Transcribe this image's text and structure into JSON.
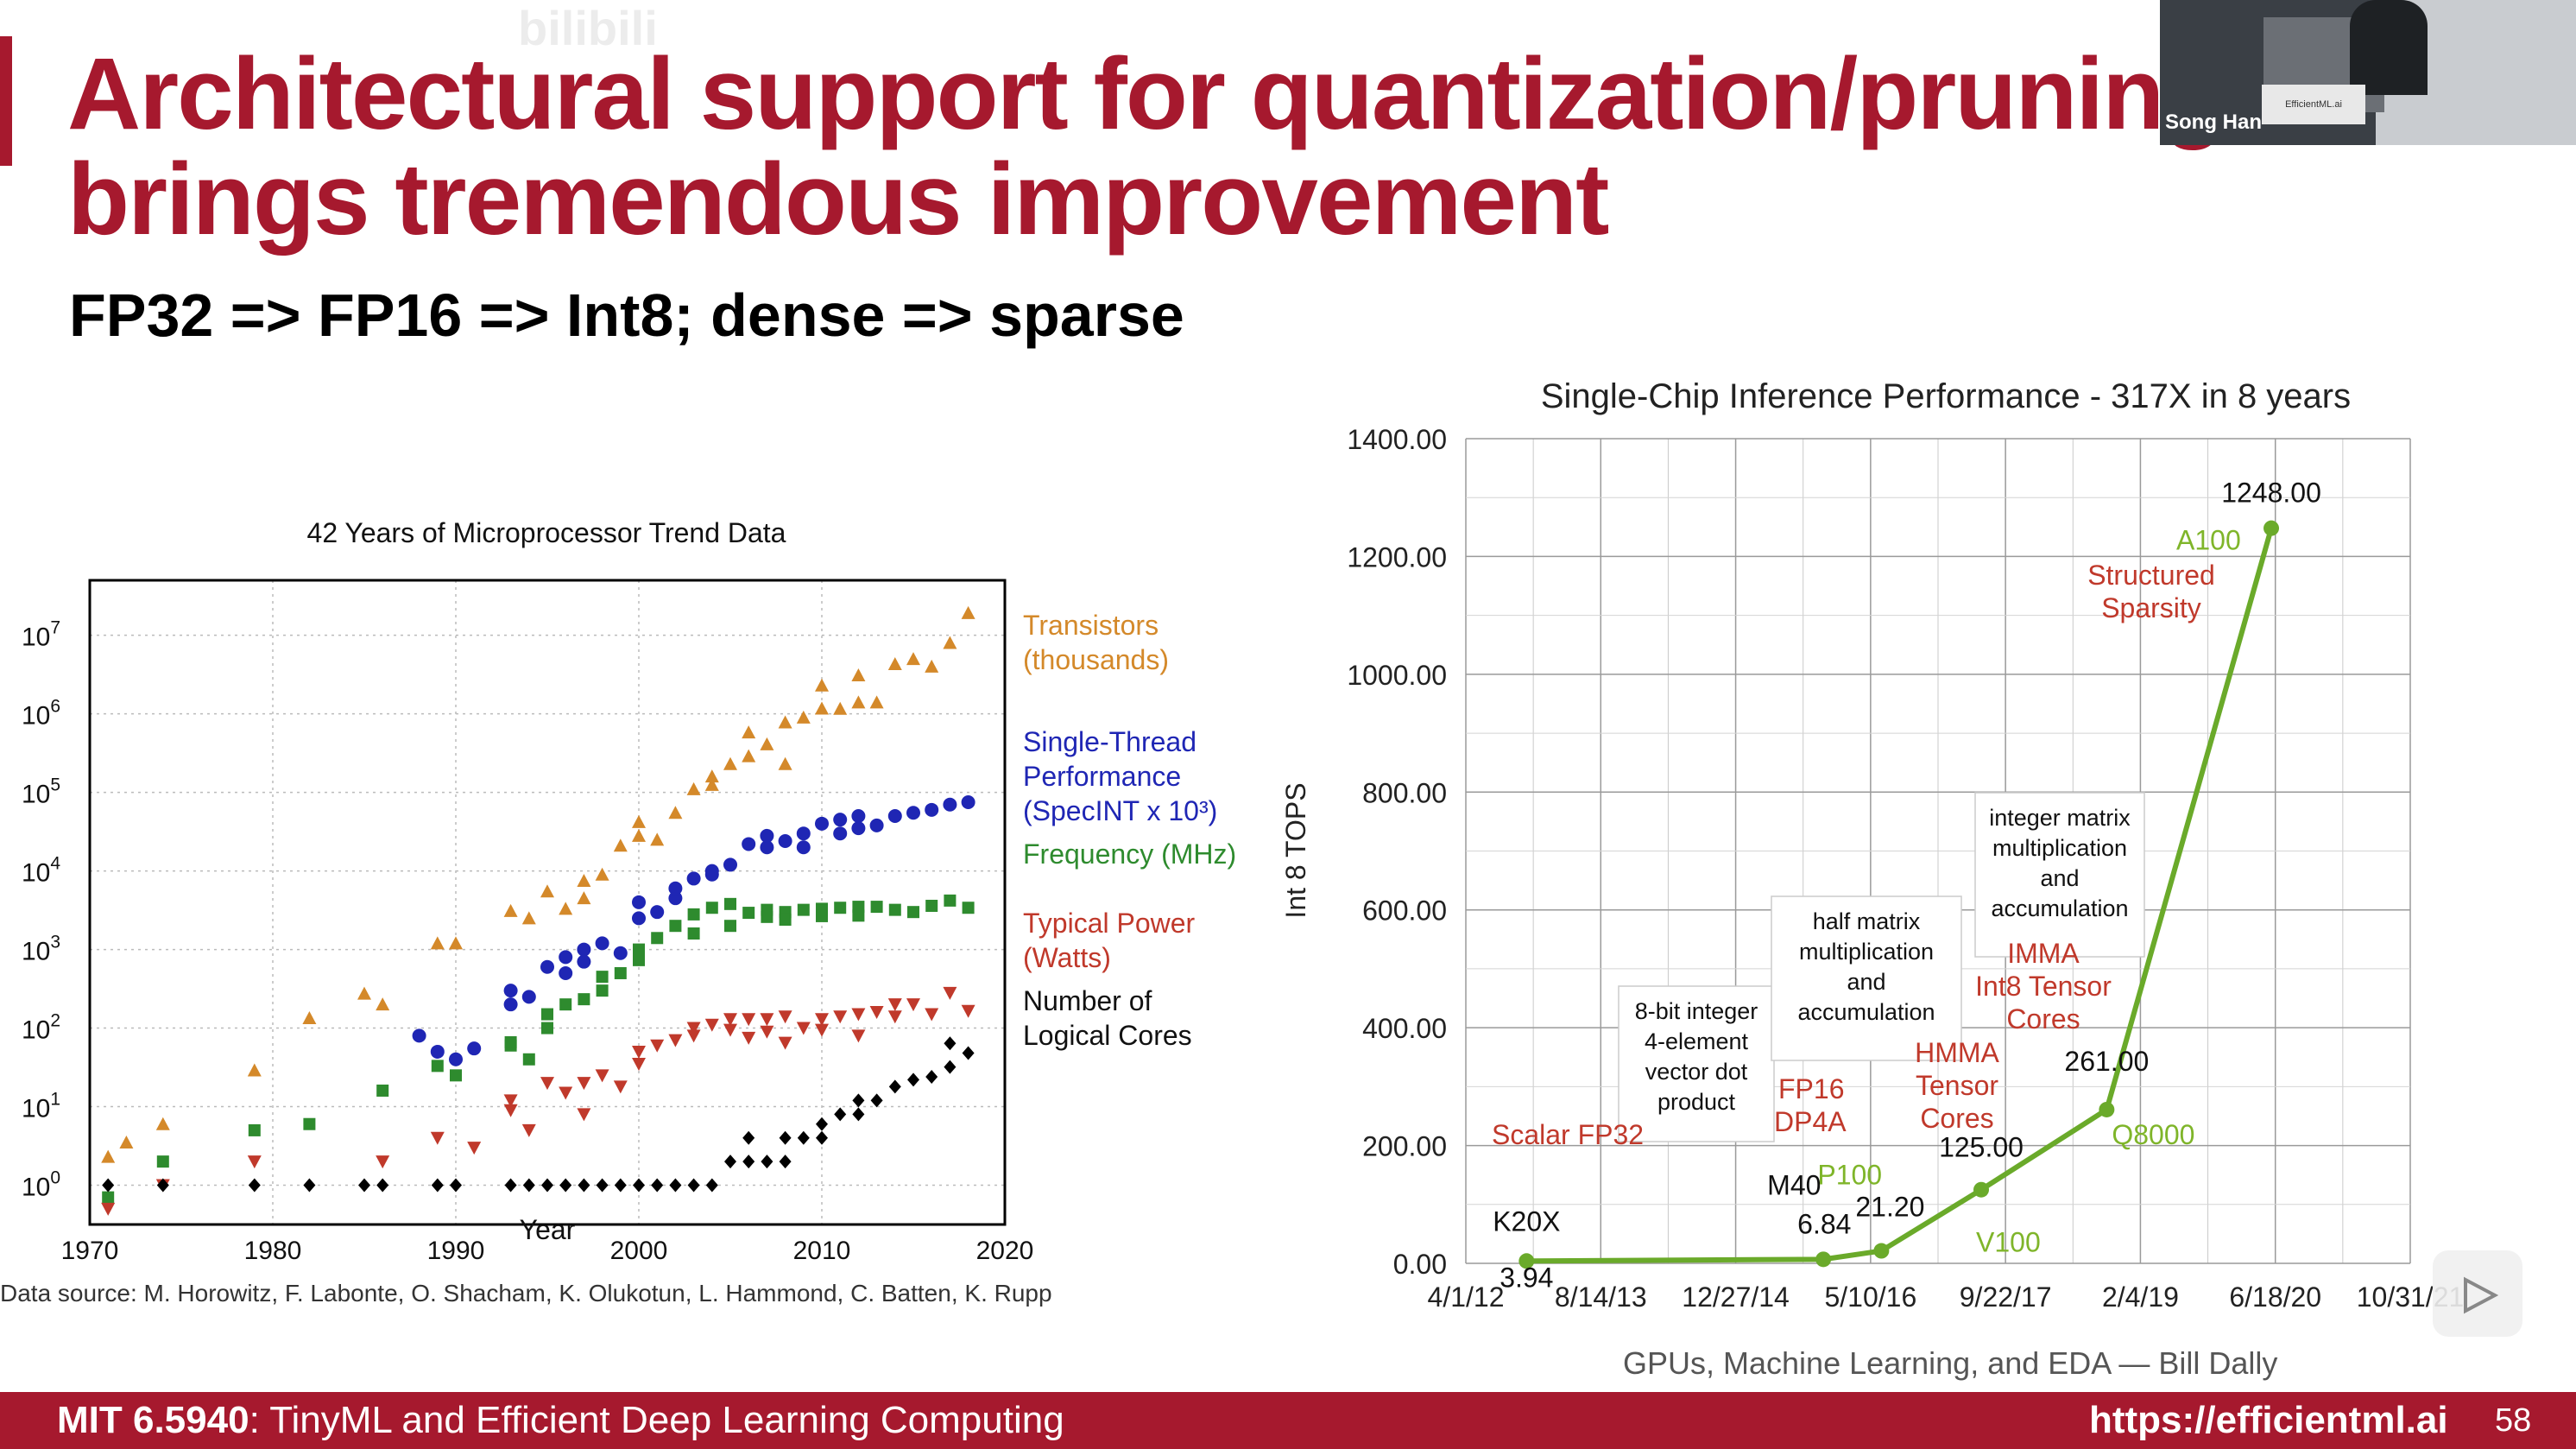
{
  "slide": {
    "title_line1": "Architectural support for quantization/pruning",
    "title_line2": "brings tremendous improvement",
    "subtitle": "FP32 => FP16 => Int8; dense => sparse",
    "watermark": "bilibili",
    "presenter_name": "Song Han",
    "presenter_screen": "EfficientML.ai",
    "footer": {
      "course_code": "MIT 6.5940",
      "course_name": ": TinyML and Efficient Deep Learning Computing",
      "url": "https://efficientml.ai",
      "page": "58"
    },
    "accent_color": "#a6192e",
    "play_icon": "play-icon"
  },
  "chart_data": [
    {
      "type": "scatter",
      "title": "42 Years of Microprocessor Trend Data",
      "xlabel": "Year",
      "ylabel": "",
      "xlim": [
        1970,
        2020
      ],
      "ylim_log10": [
        -0.5,
        7.7
      ],
      "yscale": "log",
      "x_ticks": [
        "1970",
        "1980",
        "1990",
        "2000",
        "2010",
        "2020"
      ],
      "y_tick_exponents": [
        "0",
        "1",
        "2",
        "3",
        "4",
        "5",
        "6",
        "7"
      ],
      "y_tick_base": "10",
      "source": "Data source: M. Horowitz, F. Labonte, O. Shacham, K. Olukotun, L. Hammond, C. Batten, K. Rupp",
      "series": [
        {
          "name_lines": [
            "Transistors",
            "(thousands)"
          ],
          "color": "#d4892a",
          "marker": "triangle-up",
          "points": [
            [
              1971,
              2.3
            ],
            [
              1972,
              3.5
            ],
            [
              1974,
              6
            ],
            [
              1979,
              29
            ],
            [
              1982,
              134
            ],
            [
              1985,
              275
            ],
            [
              1986,
              200
            ],
            [
              1989,
              1200
            ],
            [
              1990,
              1200
            ],
            [
              1993,
              3100
            ],
            [
              1994,
              2500
            ],
            [
              1995,
              5500
            ],
            [
              1996,
              3300
            ],
            [
              1997,
              7500
            ],
            [
              1997,
              4500
            ],
            [
              1998,
              9000
            ],
            [
              1999,
              21000
            ],
            [
              2000,
              42000
            ],
            [
              2000,
              28000
            ],
            [
              2001,
              25000
            ],
            [
              2002,
              55000
            ],
            [
              2003,
              110000
            ],
            [
              2004,
              125000
            ],
            [
              2004,
              160000
            ],
            [
              2005,
              230000
            ],
            [
              2006,
              290000
            ],
            [
              2006,
              580000
            ],
            [
              2007,
              410000
            ],
            [
              2008,
              780000
            ],
            [
              2008,
              230000
            ],
            [
              2009,
              900000
            ],
            [
              2010,
              1170000
            ],
            [
              2010,
              2300000
            ],
            [
              2011,
              1160000
            ],
            [
              2012,
              1400000
            ],
            [
              2012,
              3100000
            ],
            [
              2013,
              1400000
            ],
            [
              2014,
              4300000
            ],
            [
              2015,
              5000000
            ],
            [
              2016,
              4000000
            ],
            [
              2017,
              8000000
            ],
            [
              2018,
              19200000
            ]
          ]
        },
        {
          "name_lines": [
            "Single-Thread",
            "Performance",
            "(SpecINT x 10³)"
          ],
          "color": "#1f26b4",
          "marker": "circle",
          "points": [
            [
              1988,
              80
            ],
            [
              1989,
              50
            ],
            [
              1990,
              40
            ],
            [
              1991,
              55
            ],
            [
              1993,
              200
            ],
            [
              1993,
              300
            ],
            [
              1994,
              250
            ],
            [
              1995,
              600
            ],
            [
              1996,
              500
            ],
            [
              1996,
              800
            ],
            [
              1997,
              1000
            ],
            [
              1997,
              700
            ],
            [
              1998,
              1200
            ],
            [
              1999,
              900
            ],
            [
              2000,
              4000
            ],
            [
              2000,
              2500
            ],
            [
              2001,
              3000
            ],
            [
              2002,
              4500
            ],
            [
              2002,
              6000
            ],
            [
              2003,
              8000
            ],
            [
              2004,
              10000
            ],
            [
              2004,
              9000
            ],
            [
              2005,
              12000
            ],
            [
              2006,
              22000
            ],
            [
              2007,
              20000
            ],
            [
              2007,
              28000
            ],
            [
              2008,
              24000
            ],
            [
              2009,
              30000
            ],
            [
              2009,
              20000
            ],
            [
              2010,
              40000
            ],
            [
              2011,
              30000
            ],
            [
              2011,
              45000
            ],
            [
              2012,
              50000
            ],
            [
              2012,
              35000
            ],
            [
              2013,
              38000
            ],
            [
              2014,
              50000
            ],
            [
              2015,
              55000
            ],
            [
              2016,
              60000
            ],
            [
              2017,
              70000
            ],
            [
              2018,
              75000
            ]
          ]
        },
        {
          "name_lines": [
            "Frequency (MHz)"
          ],
          "color": "#2e8b2e",
          "marker": "square",
          "points": [
            [
              1971,
              0.7
            ],
            [
              1974,
              2
            ],
            [
              1979,
              5
            ],
            [
              1982,
              6
            ],
            [
              1986,
              16
            ],
            [
              1989,
              33
            ],
            [
              1990,
              25
            ],
            [
              1993,
              60
            ],
            [
              1993,
              66
            ],
            [
              1994,
              40
            ],
            [
              1995,
              100
            ],
            [
              1995,
              150
            ],
            [
              1996,
              200
            ],
            [
              1997,
              233
            ],
            [
              1998,
              300
            ],
            [
              1998,
              450
            ],
            [
              1999,
              500
            ],
            [
              2000,
              1000
            ],
            [
              2000,
              733
            ],
            [
              2001,
              1400
            ],
            [
              2002,
              2000
            ],
            [
              2003,
              2800
            ],
            [
              2003,
              1600
            ],
            [
              2004,
              3400
            ],
            [
              2005,
              3800
            ],
            [
              2005,
              2000
            ],
            [
              2006,
              2933
            ],
            [
              2007,
              2600
            ],
            [
              2007,
              3200
            ],
            [
              2008,
              3000
            ],
            [
              2008,
              2400
            ],
            [
              2009,
              3200
            ],
            [
              2010,
              3300
            ],
            [
              2010,
              2660
            ],
            [
              2011,
              3400
            ],
            [
              2012,
              3500
            ],
            [
              2012,
              2700
            ],
            [
              2013,
              3500
            ],
            [
              2014,
              3200
            ],
            [
              2015,
              3000
            ],
            [
              2016,
              3600
            ],
            [
              2017,
              4200
            ],
            [
              2018,
              3400
            ]
          ]
        },
        {
          "name_lines": [
            "Typical Power",
            "(Watts)"
          ],
          "color": "#c0392b",
          "marker": "triangle-down",
          "points": [
            [
              1971,
              0.5
            ],
            [
              1974,
              1
            ],
            [
              1979,
              2
            ],
            [
              1986,
              2
            ],
            [
              1989,
              4
            ],
            [
              1991,
              3
            ],
            [
              1993,
              9
            ],
            [
              1993,
              12
            ],
            [
              1994,
              5
            ],
            [
              1995,
              20
            ],
            [
              1996,
              15
            ],
            [
              1997,
              20
            ],
            [
              1997,
              8
            ],
            [
              1998,
              25
            ],
            [
              1999,
              18
            ],
            [
              2000,
              35
            ],
            [
              2000,
              50
            ],
            [
              2001,
              60
            ],
            [
              2002,
              70
            ],
            [
              2003,
              80
            ],
            [
              2003,
              100
            ],
            [
              2004,
              110
            ],
            [
              2005,
              95
            ],
            [
              2005,
              130
            ],
            [
              2006,
              75
            ],
            [
              2006,
              130
            ],
            [
              2007,
              90
            ],
            [
              2007,
              130
            ],
            [
              2008,
              65
            ],
            [
              2008,
              140
            ],
            [
              2009,
              100
            ],
            [
              2010,
              130
            ],
            [
              2010,
              95
            ],
            [
              2011,
              140
            ],
            [
              2012,
              80
            ],
            [
              2012,
              150
            ],
            [
              2013,
              160
            ],
            [
              2014,
              200
            ],
            [
              2014,
              140
            ],
            [
              2015,
              200
            ],
            [
              2016,
              150
            ],
            [
              2017,
              280
            ],
            [
              2018,
              165
            ]
          ]
        },
        {
          "name_lines": [
            "Number of",
            "Logical Cores"
          ],
          "color": "#000000",
          "marker": "diamond",
          "points": [
            [
              1971,
              1
            ],
            [
              1974,
              1
            ],
            [
              1979,
              1
            ],
            [
              1982,
              1
            ],
            [
              1985,
              1
            ],
            [
              1986,
              1
            ],
            [
              1989,
              1
            ],
            [
              1990,
              1
            ],
            [
              1993,
              1
            ],
            [
              1994,
              1
            ],
            [
              1995,
              1
            ],
            [
              1996,
              1
            ],
            [
              1997,
              1
            ],
            [
              1998,
              1
            ],
            [
              1999,
              1
            ],
            [
              2000,
              1
            ],
            [
              2001,
              1
            ],
            [
              2002,
              1
            ],
            [
              2003,
              1
            ],
            [
              2004,
              1
            ],
            [
              2005,
              2
            ],
            [
              2006,
              2
            ],
            [
              2006,
              4
            ],
            [
              2007,
              2
            ],
            [
              2008,
              4
            ],
            [
              2008,
              2
            ],
            [
              2009,
              4
            ],
            [
              2010,
              6
            ],
            [
              2010,
              4
            ],
            [
              2011,
              8
            ],
            [
              2012,
              8
            ],
            [
              2012,
              12
            ],
            [
              2013,
              12
            ],
            [
              2014,
              18
            ],
            [
              2015,
              22
            ],
            [
              2016,
              24
            ],
            [
              2017,
              32
            ],
            [
              2017,
              64
            ],
            [
              2018,
              48
            ]
          ]
        }
      ]
    },
    {
      "type": "line",
      "title": "Single-Chip Inference Performance - 317X in 8 years",
      "ylabel": "Int 8 TOPS",
      "ylim": [
        0,
        1400
      ],
      "y_ticks": [
        "0.00",
        "200.00",
        "400.00",
        "600.00",
        "800.00",
        "1000.00",
        "1200.00",
        "1400.00"
      ],
      "x_ticks": [
        "4/1/12",
        "8/14/13",
        "12/27/14",
        "5/10/16",
        "9/22/17",
        "2/4/19",
        "6/18/20",
        "10/31/21"
      ],
      "x_tick_index": [
        0,
        1,
        2,
        3,
        4,
        5,
        6,
        7
      ],
      "credit": "GPUs, Machine Learning, and EDA — Bill Dally",
      "line_color": "#6aaa2a",
      "points": [
        {
          "x": 0.45,
          "y": 3.94,
          "value": "3.94",
          "name": "K20X"
        },
        {
          "x": 2.65,
          "y": 6.84,
          "value": "6.84",
          "name": "M40"
        },
        {
          "x": 3.08,
          "y": 21.2,
          "value": "21.20",
          "name": "P100"
        },
        {
          "x": 3.82,
          "y": 125,
          "value": "125.00",
          "name": "V100"
        },
        {
          "x": 4.75,
          "y": 261,
          "value": "261.00",
          "name": "Q8000"
        },
        {
          "x": 5.97,
          "y": 1248,
          "value": "1248.00",
          "name": "A100"
        }
      ],
      "annotations": {
        "scalar": "Scalar FP32",
        "fp16_line1": "FP16",
        "fp16_line2": "DP4A",
        "hmma_line1": "HMMA",
        "hmma_line2": "Tensor",
        "hmma_line3": "Cores",
        "imma_line1": "IMMA",
        "imma_line2": "Int8 Tensor",
        "imma_line3": "Cores",
        "sparsity_line1": "Structured",
        "sparsity_line2": "Sparsity",
        "box1": [
          "8-bit integer",
          "4-element",
          "vector dot",
          "product"
        ],
        "box2": [
          "half matrix",
          "multiplication",
          "and",
          "accumulation"
        ],
        "box3": [
          "integer matrix",
          "multiplication",
          "and",
          "accumulation"
        ]
      }
    }
  ]
}
